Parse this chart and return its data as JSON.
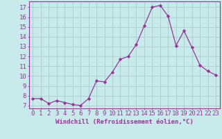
{
  "x": [
    0,
    1,
    2,
    3,
    4,
    5,
    6,
    7,
    8,
    9,
    10,
    11,
    12,
    13,
    14,
    15,
    16,
    17,
    18,
    19,
    20,
    21,
    22,
    23
  ],
  "y": [
    7.7,
    7.7,
    7.2,
    7.5,
    7.3,
    7.1,
    7.0,
    7.7,
    9.5,
    9.4,
    10.4,
    11.7,
    12.0,
    13.2,
    15.1,
    17.0,
    17.2,
    16.1,
    13.1,
    14.6,
    12.9,
    11.1,
    10.5,
    10.1
  ],
  "line_color": "#993399",
  "marker": "D",
  "marker_size": 2.2,
  "bg_color": "#c8eaea",
  "grid_color": "#a8cccc",
  "axis_color": "#993399",
  "tick_color": "#993399",
  "xlabel": "Windchill (Refroidissement éolien,°C)",
  "ylabel_ticks": [
    7,
    8,
    9,
    10,
    11,
    12,
    13,
    14,
    15,
    16,
    17
  ],
  "xlim": [
    -0.5,
    23.5
  ],
  "ylim": [
    6.7,
    17.6
  ],
  "font_color": "#993399",
  "font_size": 6.5,
  "xlabel_font_size": 6.5
}
